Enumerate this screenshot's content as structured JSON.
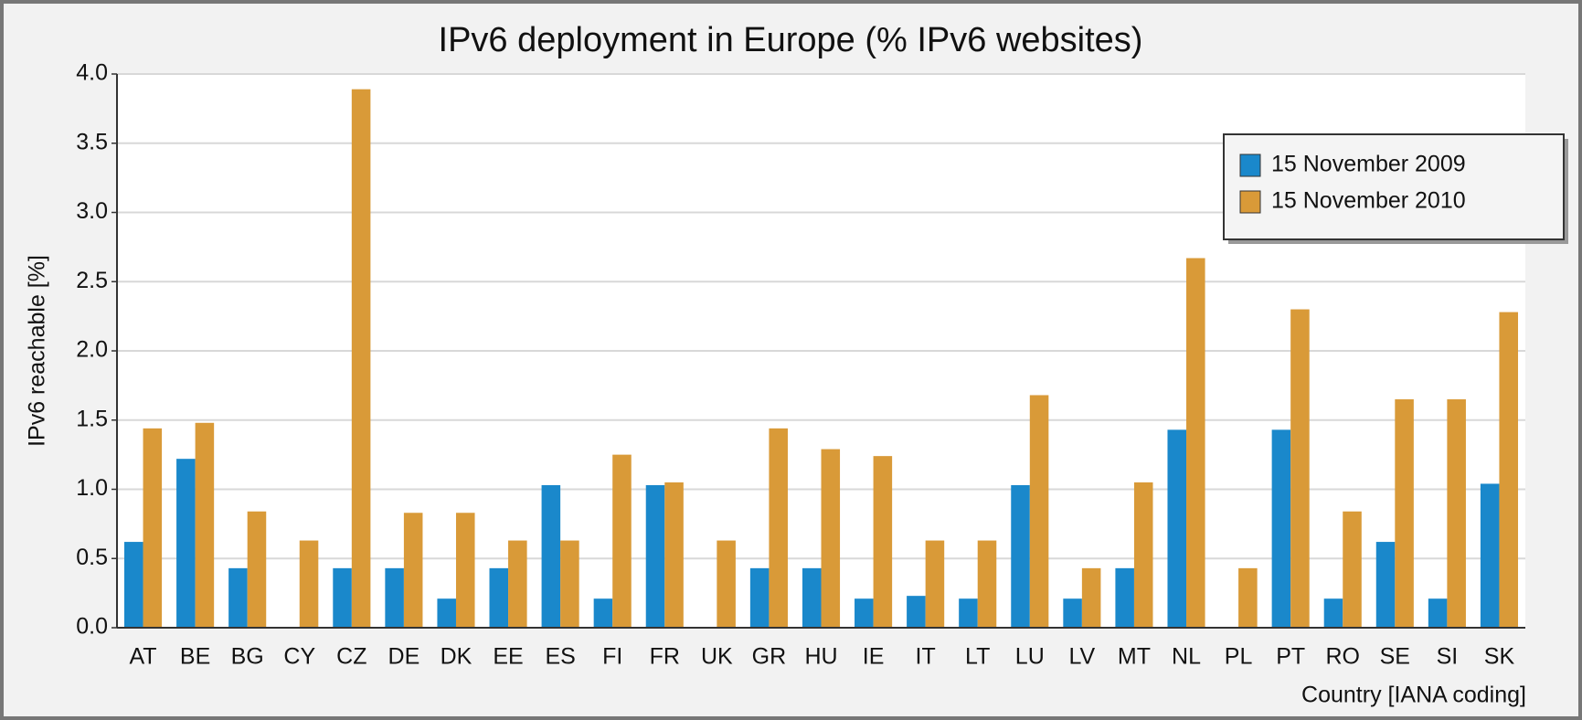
{
  "chart_data": {
    "type": "bar",
    "title": "IPv6 deployment in Europe (% IPv6 websites)",
    "y_label": "IPv6 reachable [%]",
    "x_label": "Country [IANA coding]",
    "categories": [
      "AT",
      "BE",
      "BG",
      "CY",
      "CZ",
      "DE",
      "DK",
      "EE",
      "ES",
      "FI",
      "FR",
      "UK",
      "GR",
      "HU",
      "IE",
      "IT",
      "LT",
      "LU",
      "LV",
      "MT",
      "NL",
      "PL",
      "PT",
      "RO",
      "SE",
      "SI",
      "SK"
    ],
    "series": [
      {
        "name": "15 November 2009",
        "color": "#1a88cb",
        "values": [
          0.62,
          1.22,
          0.43,
          0,
          0.43,
          0.43,
          0.21,
          0.43,
          1.03,
          0.21,
          1.03,
          0,
          0.43,
          0.43,
          0.21,
          0.23,
          0.21,
          1.03,
          0.21,
          0.43,
          1.43,
          0,
          1.43,
          0.21,
          0.62,
          0.21,
          1.04
        ]
      },
      {
        "name": "15 November 2010",
        "color": "#d99a38",
        "values": [
          1.44,
          1.48,
          0.84,
          0.63,
          3.89,
          0.83,
          0.83,
          0.63,
          0.63,
          1.25,
          1.05,
          0.63,
          1.44,
          1.29,
          1.24,
          0.63,
          0.63,
          1.68,
          0.43,
          1.05,
          2.67,
          0.43,
          2.3,
          0.84,
          1.65,
          1.65,
          2.28
        ]
      }
    ],
    "ylim": [
      0,
      4
    ],
    "yticks": [
      {
        "value": 0,
        "label": "0.0"
      },
      {
        "value": 0.5,
        "label": "0.5"
      },
      {
        "value": 1,
        "label": "1.0"
      },
      {
        "value": 1.5,
        "label": "1.5"
      },
      {
        "value": 2,
        "label": "2.0"
      },
      {
        "value": 2.5,
        "label": "2.5"
      },
      {
        "value": 3,
        "label": "3.0"
      },
      {
        "value": 3.5,
        "label": "3.5"
      },
      {
        "value": 4,
        "label": "4.0"
      }
    ],
    "grid": true,
    "legend": "upper right"
  }
}
